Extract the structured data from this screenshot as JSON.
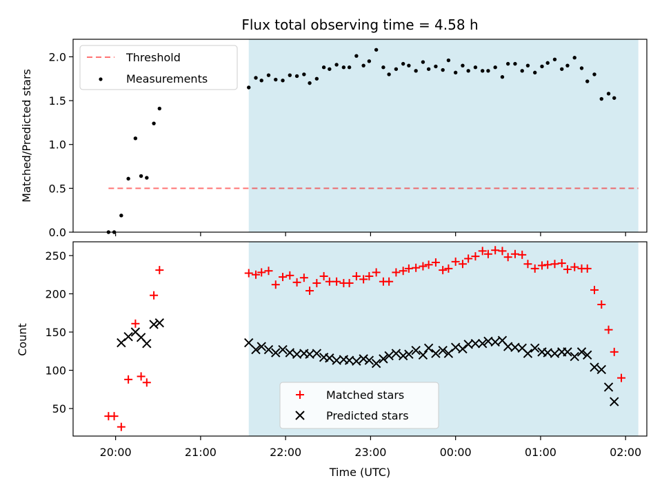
{
  "chart_data": [
    {
      "type": "scatter",
      "title": "Flux total observing time = 4.58 h",
      "xlabel": "",
      "ylabel": "Matched/Predicted stars",
      "ylim": [
        0,
        2.2
      ],
      "yticks": [
        "0.0",
        "0.5",
        "1.0",
        "1.5",
        "2.0"
      ],
      "shaded_region": {
        "x_start": "21:34",
        "x_end": "02:09",
        "color": "#add8e6"
      },
      "threshold": {
        "name": "Threshold",
        "value": 0.5,
        "x_start": "19:55",
        "x_end": "02:09",
        "color": "#ff0000"
      },
      "legend": [
        "Threshold",
        "Measurements"
      ],
      "legend_position": "upper-left",
      "series": [
        {
          "name": "Measurements",
          "marker": "dot",
          "color": "#000000",
          "points": [
            [
              "19:55",
              0.0
            ],
            [
              "19:59",
              0.0
            ],
            [
              "20:04",
              0.19
            ],
            [
              "20:09",
              0.61
            ],
            [
              "20:14",
              1.07
            ],
            [
              "20:18",
              0.64
            ],
            [
              "20:22",
              0.62
            ],
            [
              "20:27",
              1.24
            ],
            [
              "20:31",
              1.41
            ],
            [
              "21:34",
              1.65
            ],
            [
              "21:39",
              1.76
            ],
            [
              "21:43",
              1.73
            ],
            [
              "21:48",
              1.79
            ],
            [
              "21:53",
              1.74
            ],
            [
              "21:58",
              1.73
            ],
            [
              "22:03",
              1.79
            ],
            [
              "22:08",
              1.78
            ],
            [
              "22:13",
              1.8
            ],
            [
              "22:17",
              1.7
            ],
            [
              "22:22",
              1.75
            ],
            [
              "22:27",
              1.88
            ],
            [
              "22:31",
              1.86
            ],
            [
              "22:36",
              1.91
            ],
            [
              "22:41",
              1.88
            ],
            [
              "22:45",
              1.88
            ],
            [
              "22:50",
              2.01
            ],
            [
              "22:55",
              1.9
            ],
            [
              "22:59",
              1.95
            ],
            [
              "23:04",
              2.08
            ],
            [
              "23:09",
              1.88
            ],
            [
              "23:13",
              1.8
            ],
            [
              "23:18",
              1.86
            ],
            [
              "23:23",
              1.92
            ],
            [
              "23:27",
              1.9
            ],
            [
              "23:32",
              1.84
            ],
            [
              "23:37",
              1.94
            ],
            [
              "23:41",
              1.86
            ],
            [
              "23:46",
              1.89
            ],
            [
              "23:51",
              1.85
            ],
            [
              "23:55",
              1.96
            ],
            [
              "00:00",
              1.82
            ],
            [
              "00:05",
              1.9
            ],
            [
              "00:09",
              1.84
            ],
            [
              "00:14",
              1.88
            ],
            [
              "00:19",
              1.84
            ],
            [
              "00:23",
              1.84
            ],
            [
              "00:28",
              1.88
            ],
            [
              "00:33",
              1.77
            ],
            [
              "00:37",
              1.92
            ],
            [
              "00:42",
              1.92
            ],
            [
              "00:47",
              1.84
            ],
            [
              "00:51",
              1.9
            ],
            [
              "00:56",
              1.82
            ],
            [
              "01:01",
              1.89
            ],
            [
              "01:05",
              1.93
            ],
            [
              "01:10",
              1.97
            ],
            [
              "01:15",
              1.86
            ],
            [
              "01:19",
              1.9
            ],
            [
              "01:24",
              1.99
            ],
            [
              "01:29",
              1.87
            ],
            [
              "01:33",
              1.72
            ],
            [
              "01:38",
              1.8
            ],
            [
              "01:43",
              1.52
            ],
            [
              "01:48",
              1.58
            ],
            [
              "01:52",
              1.53
            ]
          ]
        }
      ]
    },
    {
      "type": "scatter",
      "title": "",
      "xlabel": "Time (UTC)",
      "ylabel": "Count",
      "ylim": [
        14,
        268
      ],
      "yticks": [
        "50",
        "100",
        "150",
        "200",
        "250"
      ],
      "xticks": [
        "20:00",
        "21:00",
        "22:00",
        "23:00",
        "00:00",
        "01:00",
        "02:00"
      ],
      "shaded_region": {
        "x_start": "21:34",
        "x_end": "02:09",
        "color": "#add8e6"
      },
      "legend": [
        "Matched stars",
        "Predicted stars"
      ],
      "legend_position": "lower-center",
      "series": [
        {
          "name": "Matched stars",
          "marker": "plus",
          "color": "#ff0000",
          "points": [
            [
              "19:55",
              40
            ],
            [
              "19:59",
              40
            ],
            [
              "20:04",
              26
            ],
            [
              "20:09",
              88
            ],
            [
              "20:14",
              161
            ],
            [
              "20:18",
              92
            ],
            [
              "20:22",
              84
            ],
            [
              "20:27",
              198
            ],
            [
              "20:31",
              231
            ],
            [
              "21:34",
              227
            ],
            [
              "21:39",
              225
            ],
            [
              "21:43",
              228
            ],
            [
              "21:48",
              230
            ],
            [
              "21:53",
              212
            ],
            [
              "21:58",
              222
            ],
            [
              "22:03",
              224
            ],
            [
              "22:08",
              215
            ],
            [
              "22:13",
              221
            ],
            [
              "22:17",
              204
            ],
            [
              "22:22",
              214
            ],
            [
              "22:27",
              223
            ],
            [
              "22:31",
              216
            ],
            [
              "22:36",
              216
            ],
            [
              "22:41",
              214
            ],
            [
              "22:45",
              214
            ],
            [
              "22:50",
              223
            ],
            [
              "22:55",
              219
            ],
            [
              "22:59",
              223
            ],
            [
              "23:04",
              228
            ],
            [
              "23:09",
              216
            ],
            [
              "23:13",
              216
            ],
            [
              "23:18",
              228
            ],
            [
              "23:23",
              230
            ],
            [
              "23:27",
              233
            ],
            [
              "23:32",
              234
            ],
            [
              "23:37",
              236
            ],
            [
              "23:41",
              238
            ],
            [
              "23:46",
              241
            ],
            [
              "23:51",
              231
            ],
            [
              "23:55",
              233
            ],
            [
              "00:00",
              242
            ],
            [
              "00:05",
              239
            ],
            [
              "00:09",
              246
            ],
            [
              "00:14",
              249
            ],
            [
              "00:19",
              256
            ],
            [
              "00:23",
              252
            ],
            [
              "00:28",
              257
            ],
            [
              "00:33",
              256
            ],
            [
              "00:37",
              248
            ],
            [
              "00:42",
              252
            ],
            [
              "00:47",
              251
            ],
            [
              "00:51",
              239
            ],
            [
              "00:56",
              233
            ],
            [
              "01:01",
              237
            ],
            [
              "01:05",
              238
            ],
            [
              "01:10",
              239
            ],
            [
              "01:15",
              240
            ],
            [
              "01:19",
              232
            ],
            [
              "01:24",
              235
            ],
            [
              "01:29",
              233
            ],
            [
              "01:33",
              233
            ],
            [
              "01:38",
              205
            ],
            [
              "01:43",
              186
            ],
            [
              "01:48",
              153
            ],
            [
              "01:52",
              124
            ],
            [
              "01:57",
              90
            ]
          ]
        },
        {
          "name": "Predicted stars",
          "marker": "x",
          "color": "#000000",
          "points": [
            [
              "20:04",
              136
            ],
            [
              "20:09",
              144
            ],
            [
              "20:14",
              150
            ],
            [
              "20:18",
              143
            ],
            [
              "20:22",
              135
            ],
            [
              "20:27",
              160
            ],
            [
              "20:31",
              162
            ],
            [
              "21:34",
              136
            ],
            [
              "21:39",
              127
            ],
            [
              "21:43",
              131
            ],
            [
              "21:48",
              127
            ],
            [
              "21:53",
              123
            ],
            [
              "21:58",
              127
            ],
            [
              "22:03",
              123
            ],
            [
              "22:08",
              121
            ],
            [
              "22:13",
              122
            ],
            [
              "22:17",
              121
            ],
            [
              "22:22",
              122
            ],
            [
              "22:27",
              117
            ],
            [
              "22:31",
              116
            ],
            [
              "22:36",
              113
            ],
            [
              "22:41",
              114
            ],
            [
              "22:45",
              113
            ],
            [
              "22:50",
              112
            ],
            [
              "22:55",
              115
            ],
            [
              "22:59",
              113
            ],
            [
              "23:04",
              109
            ],
            [
              "23:09",
              115
            ],
            [
              "23:13",
              119
            ],
            [
              "23:18",
              122
            ],
            [
              "23:23",
              119
            ],
            [
              "23:27",
              121
            ],
            [
              "23:32",
              126
            ],
            [
              "23:37",
              120
            ],
            [
              "23:41",
              129
            ],
            [
              "23:46",
              122
            ],
            [
              "23:51",
              126
            ],
            [
              "23:55",
              122
            ],
            [
              "00:00",
              130
            ],
            [
              "00:05",
              128
            ],
            [
              "00:09",
              134
            ],
            [
              "00:14",
              135
            ],
            [
              "00:19",
              135
            ],
            [
              "00:23",
              138
            ],
            [
              "00:28",
              137
            ],
            [
              "00:33",
              139
            ],
            [
              "00:37",
              131
            ],
            [
              "00:42",
              130
            ],
            [
              "00:47",
              129
            ],
            [
              "00:51",
              122
            ],
            [
              "00:56",
              129
            ],
            [
              "01:01",
              124
            ],
            [
              "01:05",
              123
            ],
            [
              "01:10",
              122
            ],
            [
              "01:15",
              124
            ],
            [
              "01:19",
              124
            ],
            [
              "01:24",
              118
            ],
            [
              "01:29",
              124
            ],
            [
              "01:33",
              120
            ],
            [
              "01:38",
              104
            ],
            [
              "01:43",
              101
            ],
            [
              "01:48",
              78
            ],
            [
              "01:52",
              59
            ]
          ]
        }
      ]
    }
  ]
}
